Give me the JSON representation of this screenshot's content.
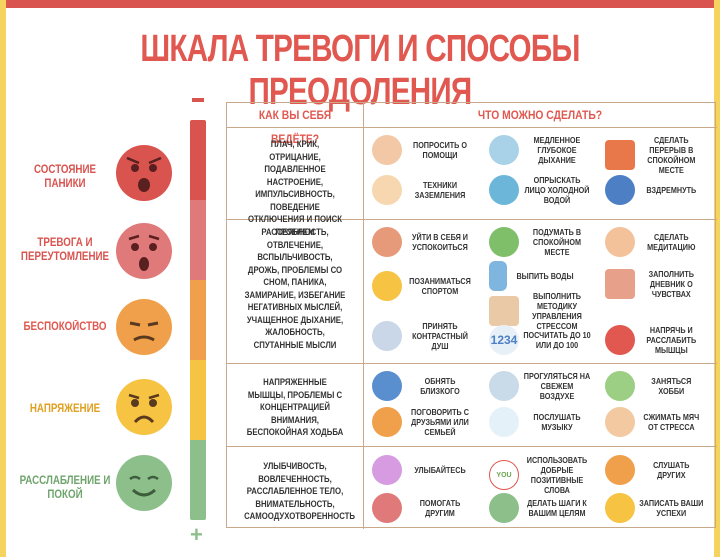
{
  "title": "ШКАЛА ТРЕВОГИ И СПОСОБЫ ПРЕОДОЛЕНИЯ",
  "colors": {
    "red": "#d9534f",
    "pink": "#e07a7a",
    "orange": "#f0a04b",
    "yellow": "#f6c343",
    "green": "#8dbf8b",
    "accent": "#e0584f"
  },
  "scale": {
    "minus": "−",
    "plus": "+"
  },
  "levels": [
    {
      "label": "СОСТОЯНИЕ ПАНИКИ",
      "face": "panic-face-icon",
      "color": "#d9534f"
    },
    {
      "label": "ТРЕВОГА И ПЕРЕУТОМЛЕНИЕ",
      "face": "anxious-face-icon",
      "color": "#e07a7a"
    },
    {
      "label": "БЕСПОКОЙСТВО",
      "face": "worried-face-icon",
      "color": "#f0a04b"
    },
    {
      "label": "НАПРЯЖЕНИЕ",
      "face": "tense-face-icon",
      "color": "#f6c343"
    },
    {
      "label": "РАССЛАБЛЕНИЕ И ПОКОЙ",
      "face": "calm-face-icon",
      "color": "#8dbf8b"
    }
  ],
  "headers": {
    "behavior": "КАК ВЫ СЕБЯ ВЕДЁТЕ?",
    "actions": "ЧТО МОЖНО СДЕЛАТЬ?"
  },
  "rows": [
    {
      "behavior": "ПЛАЧ, КРИК, ОТРИЦАНИЕ, ПОДАВЛЕННОЕ НАСТРОЕНИЕ, ИМПУЛЬСИВНОСТЬ, ПОВЕДЕНИЕ ОТКЛЮЧЕНИЯ И ПОИСК ПРОБЛЕМ",
      "actions": [
        "ПОПРОСИТЬ О ПОМОЩИ",
        "МЕДЛЕННОЕ ГЛУБОКОЕ ДЫХАНИЕ",
        "СДЕЛАТЬ ПЕРЕРЫВ В СПОКОЙНОМ МЕСТЕ",
        "ТЕХНИКИ ЗАЗЕМЛЕНИЯ",
        "ОПРЫСКАТЬ ЛИЦО ХОЛОДНОЙ ВОДОЙ",
        "ВЗДРЕМНУТЬ"
      ]
    },
    {
      "behavior": "РАССЕЯННОСТЬ, ОТВЛЕЧЕНИЕ, ВСПЫЛЬЧИВОСТЬ, ДРОЖЬ, ПРОБЛЕМЫ СО СНОМ, ПАНИКА, ЗАМИРАНИЕ, ИЗБЕГАНИЕ НЕГАТИВНЫХ МЫСЛЕЙ, УЧАЩЕННОЕ ДЫХАНИЕ, ЖАЛОБНОСТЬ, СПУТАННЫЕ МЫСЛИ",
      "actions": [
        "УЙТИ В СЕБЯ И УСПОКОИТЬСЯ",
        "ПОДУМАТЬ В СПОКОЙНОМ МЕСТЕ",
        "СДЕЛАТЬ МЕДИТАЦИЮ",
        "ВЫПИТЬ ВОДЫ",
        "ПОЗАНИМАТЬСЯ СПОРТОМ",
        "ВЫПОЛНИТЬ МЕТОДИКУ УПРАВЛЕНИЯ СТРЕССОМ",
        "ЗАПОЛНИТЬ ДНЕВНИК О ЧУВСТВАХ",
        "ПРИНЯТЬ КОНТРАСТНЫЙ ДУШ",
        "ПОСЧИТАТЬ ДО 10 ИЛИ ДО 100",
        "НАПРЯЧЬ И РАССЛАБИТЬ МЫШЦЫ"
      ]
    },
    {
      "behavior": "НАПРЯЖЕННЫЕ МЫШЦЫ, ПРОБЛЕМЫ С КОНЦЕНТРАЦИЕЙ ВНИМАНИЯ, БЕСПОКОЙНАЯ ХОДЬБА",
      "actions": [
        "ОБНЯТЬ БЛИЗКОГО",
        "ПРОГУЛЯТЬСЯ НА СВЕЖЕМ ВОЗДУХЕ",
        "ЗАНЯТЬСЯ ХОББИ",
        "ПОГОВОРИТЬ С ДРУЗЬЯМИ ИЛИ СЕМЬЕЙ",
        "ПОСЛУШАТЬ МУЗЫКУ",
        "СЖИМАТЬ МЯЧ ОТ СТРЕССА"
      ]
    },
    {
      "behavior": "УЛЫБЧИВОСТЬ, ВОВЛЕЧЕННОСТЬ, РАССЛАБЛЕННОЕ ТЕЛО, ВНИМАТЕЛЬНОСТЬ, САМООДУХОТВОРЕННОСТЬ",
      "actions": [
        "УЛЫБАЙТЕСЬ",
        "ИСПОЛЬЗОВАТЬ ДОБРЫЕ ПОЗИТИВНЫЕ СЛОВА",
        "СЛУШАТЬ ДРУГИХ",
        "ПОМОГАТЬ ДРУГИМ",
        "ДЕЛАТЬ ШАГИ К ВАШИМ ЦЕЛЯМ",
        "ЗАПИСАТЬ ВАШИ УСПЕХИ"
      ]
    }
  ],
  "icons": {
    "r0": [
      "help-icon",
      "breathing-icon",
      "sunset-icon",
      "grounding-icon",
      "water-splash-icon",
      "sleep-icon"
    ],
    "r1": [
      "calm-down-icon",
      "landscape-icon",
      "meditation-icon",
      "water-bottle-icon",
      "sport-icon",
      "method-icon",
      "diary-icon",
      "shower-icon",
      "numbers-icon",
      "heart-icon"
    ],
    "r2": [
      "hug-icon",
      "wind-icon",
      "hobby-icon",
      "talk-icon",
      "music-icon",
      "stress-ball-icon"
    ],
    "r3": [
      "smile-icon",
      "you-got-this-icon",
      "listen-icon",
      "help-others-icon",
      "steps-icon",
      "write-icon"
    ]
  }
}
